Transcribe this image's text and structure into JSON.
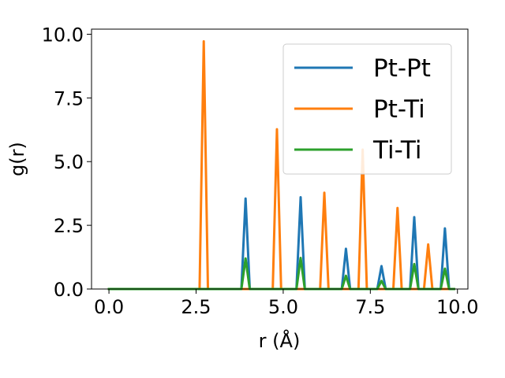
{
  "chart_data": {
    "type": "line",
    "xlabel": "r (Å)",
    "ylabel": "g(r)",
    "xlim": [
      -0.5,
      10.3
    ],
    "ylim": [
      0,
      10.2
    ],
    "xticks": [
      "0.0",
      "2.5",
      "5.0",
      "7.5",
      "10.0"
    ],
    "yticks": [
      "0.0",
      "2.5",
      "5.0",
      "7.5",
      "10.0"
    ],
    "legend_position": "top-right",
    "series": [
      {
        "name": "Pt-Pt",
        "color": "#1f77b4",
        "x": [
          0.0,
          2.6,
          2.72,
          2.84,
          3.8,
          3.92,
          4.04,
          4.7,
          4.82,
          4.94,
          5.38,
          5.5,
          5.62,
          6.06,
          6.18,
          6.3,
          6.68,
          6.8,
          6.92,
          7.16,
          7.28,
          7.4,
          7.7,
          7.82,
          7.94,
          8.16,
          8.28,
          8.4,
          8.64,
          8.76,
          8.88,
          9.04,
          9.16,
          9.28,
          9.52,
          9.64,
          9.76,
          9.9
        ],
        "y": [
          0,
          0,
          0,
          0,
          0,
          3.55,
          0,
          0,
          0,
          0,
          0,
          3.6,
          0,
          0,
          0,
          0,
          0,
          1.58,
          0,
          0,
          0,
          0,
          0,
          0.9,
          0,
          0,
          0,
          0,
          0,
          2.82,
          0,
          0,
          0,
          0,
          0,
          2.38,
          0,
          0
        ]
      },
      {
        "name": "Pt-Ti",
        "color": "#ff7f0e",
        "x": [
          0.0,
          2.6,
          2.72,
          2.84,
          3.8,
          3.92,
          4.04,
          4.7,
          4.82,
          4.94,
          5.38,
          5.5,
          5.62,
          6.06,
          6.18,
          6.3,
          6.68,
          6.8,
          6.92,
          7.16,
          7.28,
          7.4,
          7.7,
          7.82,
          7.94,
          8.16,
          8.28,
          8.4,
          8.64,
          8.76,
          8.88,
          9.04,
          9.16,
          9.28,
          9.52,
          9.64,
          9.76,
          9.9
        ],
        "y": [
          0,
          0,
          9.72,
          0,
          0,
          0,
          0,
          0,
          6.27,
          0,
          0,
          0,
          0,
          0,
          3.78,
          0,
          0,
          0,
          0,
          0,
          5.47,
          0,
          0,
          0,
          0,
          0,
          3.18,
          0,
          0,
          0,
          0,
          0,
          1.75,
          0,
          0,
          0,
          0,
          0
        ]
      },
      {
        "name": "Ti-Ti",
        "color": "#2ca02c",
        "x": [
          0.0,
          2.6,
          2.72,
          2.84,
          3.8,
          3.92,
          4.04,
          4.7,
          4.82,
          4.94,
          5.38,
          5.5,
          5.62,
          6.06,
          6.18,
          6.3,
          6.68,
          6.8,
          6.92,
          7.16,
          7.28,
          7.4,
          7.7,
          7.82,
          7.94,
          8.16,
          8.28,
          8.4,
          8.64,
          8.76,
          8.88,
          9.04,
          9.16,
          9.28,
          9.52,
          9.64,
          9.76,
          9.9
        ],
        "y": [
          0,
          0,
          0,
          0,
          0,
          1.2,
          0,
          0,
          0,
          0,
          0,
          1.22,
          0,
          0,
          0,
          0,
          0,
          0.52,
          0,
          0,
          0,
          0,
          0,
          0.32,
          0,
          0,
          0,
          0,
          0,
          0.98,
          0,
          0,
          0,
          0,
          0,
          0.8,
          0,
          0
        ]
      }
    ]
  }
}
